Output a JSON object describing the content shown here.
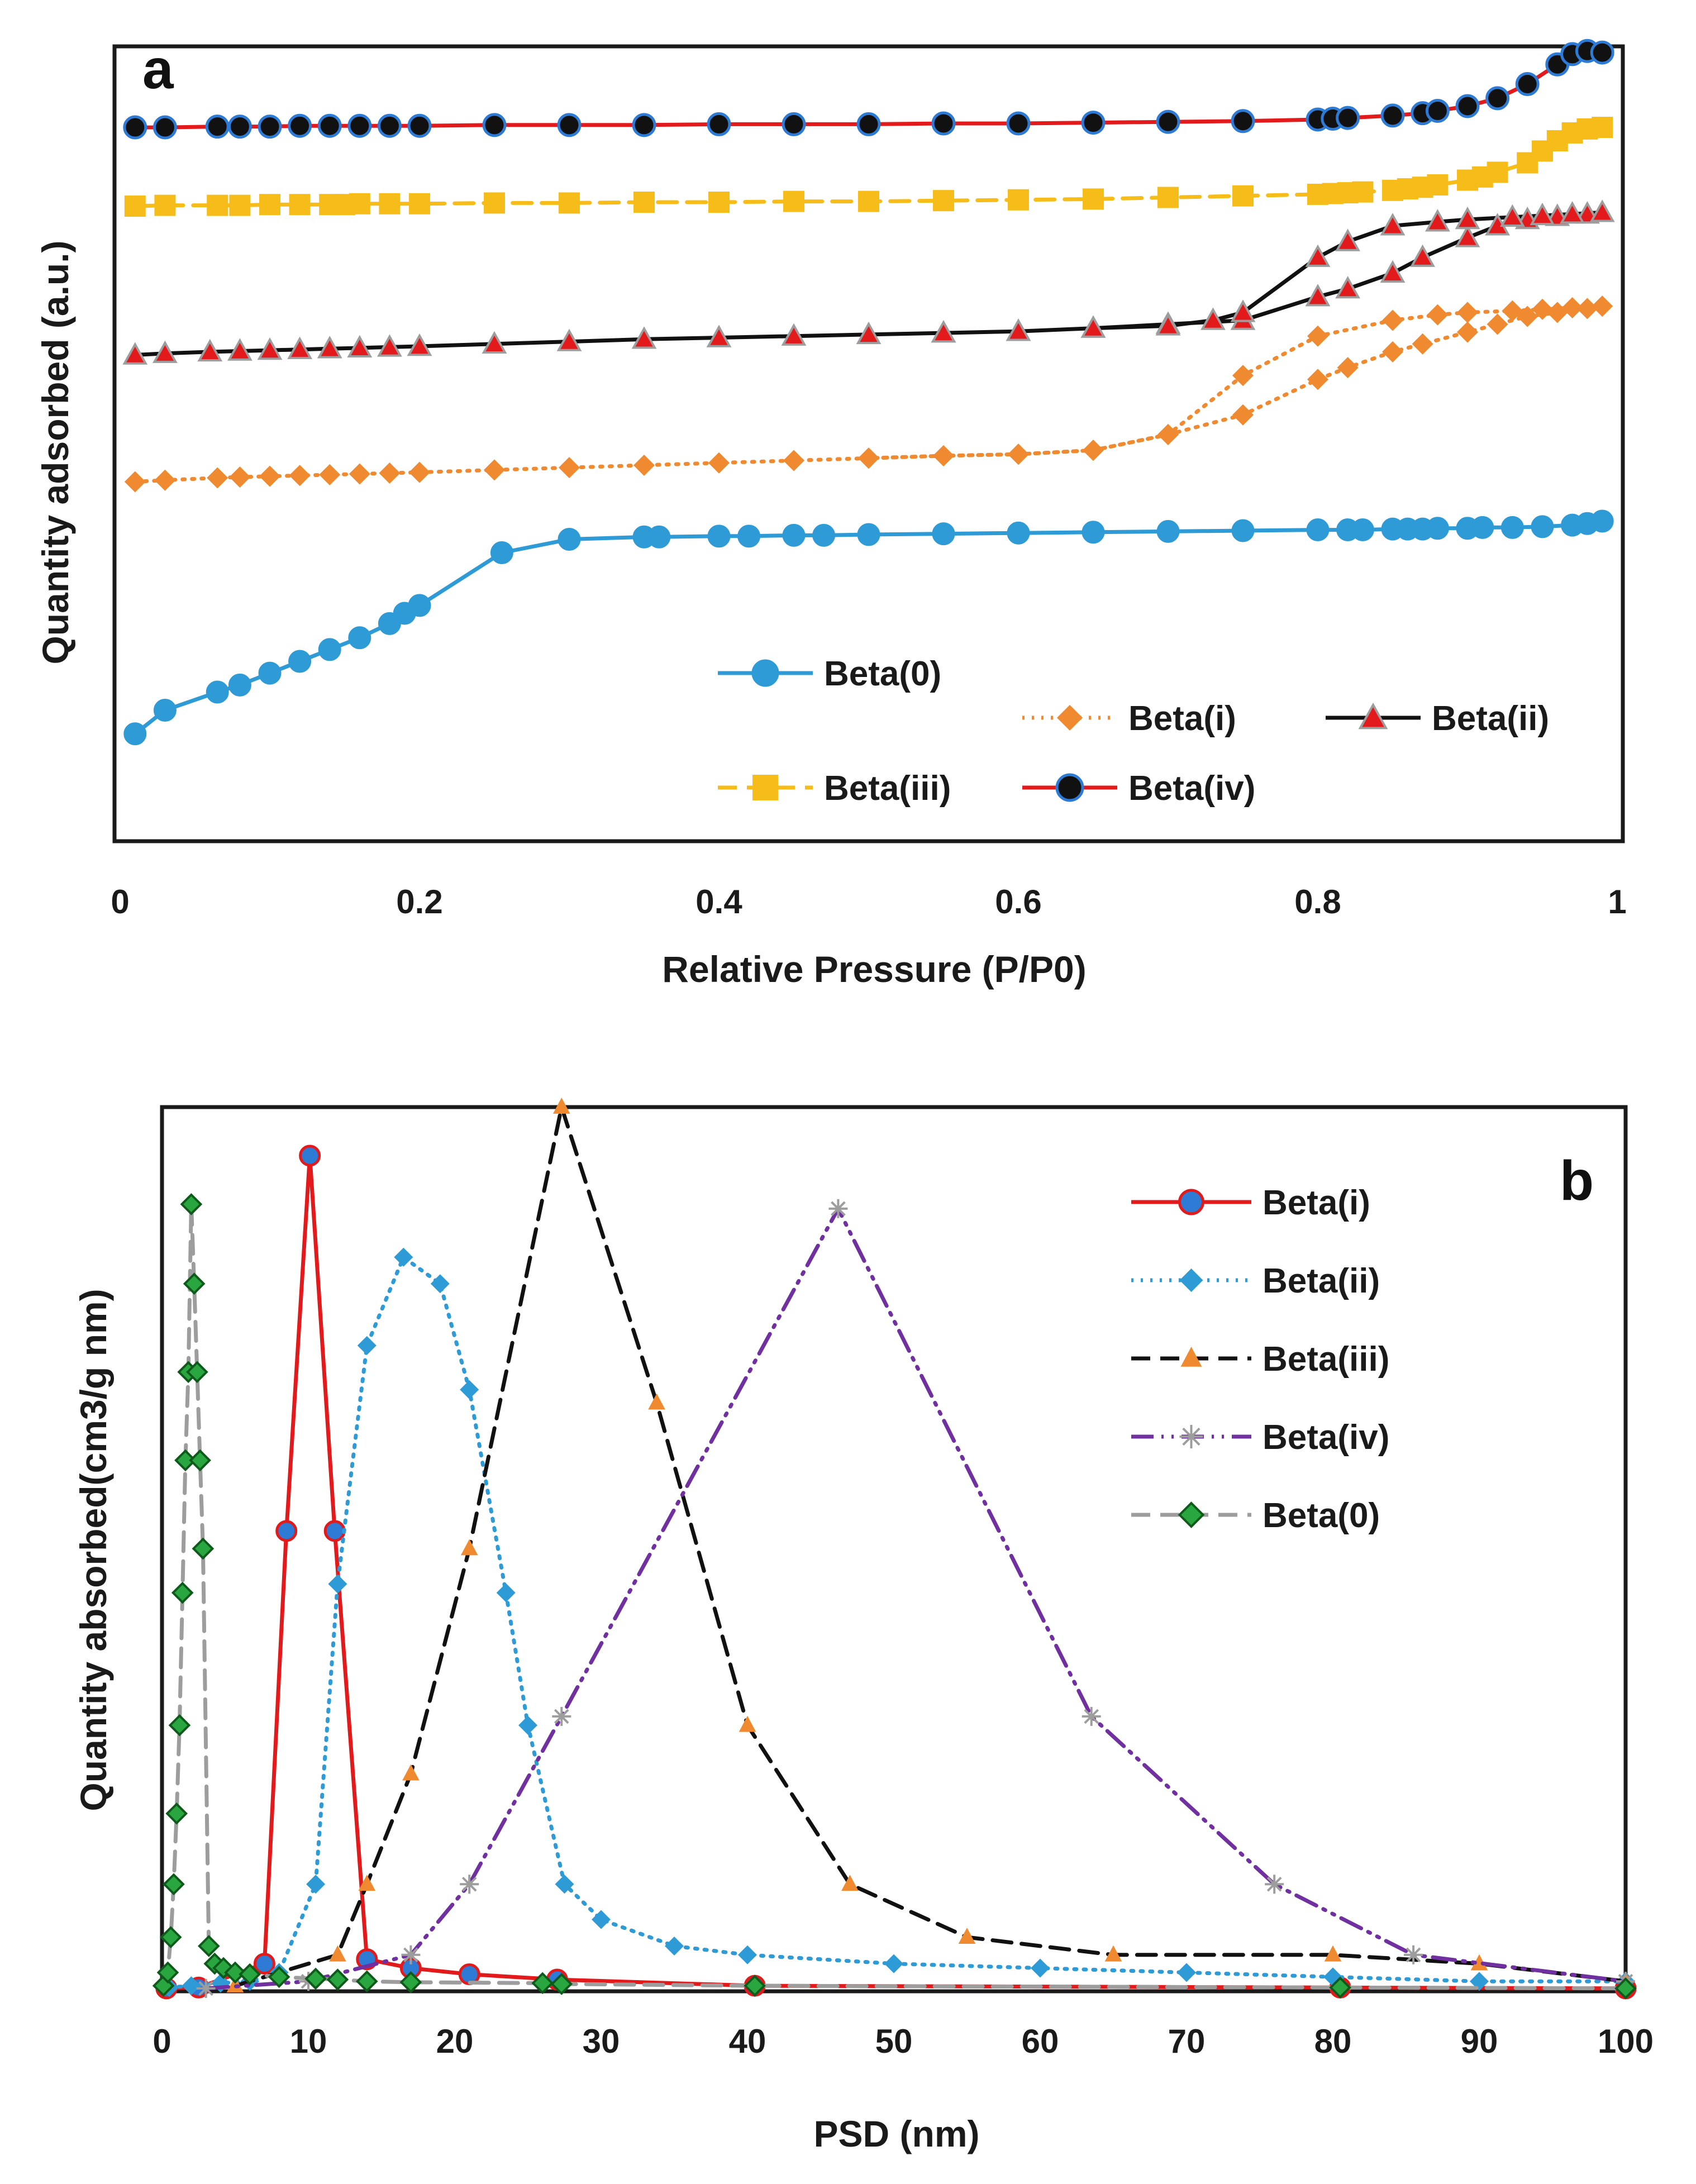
{
  "chart_data": [
    {
      "id": "a",
      "panel_label": "a",
      "type": "line",
      "title": "",
      "xlabel": "Relative Pressure (P/P0)",
      "ylabel": "Quantity adsorbed (a.u.)",
      "xlim": [
        0,
        1
      ],
      "ylim": [
        0,
        10
      ],
      "x_ticks": [
        0,
        0.2,
        0.4,
        0.6,
        0.8,
        1
      ],
      "x_tick_labels": [
        "0",
        "0.2",
        "0.4",
        "0.6",
        "0.8",
        "1"
      ],
      "grid": false,
      "legend_position": "bottom-right",
      "series": [
        {
          "name": "Beta(0)",
          "color": "#2e9bd6",
          "dash": "solid",
          "marker": "circle",
          "x": [
            0.01,
            0.03,
            0.065,
            0.08,
            0.1,
            0.12,
            0.14,
            0.16,
            0.18,
            0.19,
            0.2,
            0.255,
            0.3,
            0.35,
            0.36,
            0.4,
            0.42,
            0.45,
            0.47,
            0.5,
            0.55,
            0.6,
            0.65,
            0.7,
            0.75,
            0.8,
            0.82,
            0.83,
            0.85,
            0.86,
            0.87,
            0.88,
            0.9,
            0.91,
            0.93,
            0.95,
            0.97,
            0.98,
            0.99
          ],
          "y": [
            1.25,
            1.55,
            1.78,
            1.87,
            2.02,
            2.17,
            2.32,
            2.47,
            2.65,
            2.78,
            2.88,
            3.55,
            3.72,
            3.75,
            3.75,
            3.76,
            3.76,
            3.77,
            3.77,
            3.78,
            3.79,
            3.8,
            3.81,
            3.82,
            3.83,
            3.84,
            3.84,
            3.84,
            3.85,
            3.85,
            3.85,
            3.86,
            3.86,
            3.87,
            3.87,
            3.88,
            3.9,
            3.92,
            3.95
          ]
        },
        {
          "name": "Beta(i)",
          "color": "#f08a30",
          "dash": "dotted",
          "marker": "diamond",
          "x": [
            0.01,
            0.03,
            0.065,
            0.08,
            0.1,
            0.12,
            0.14,
            0.16,
            0.18,
            0.2,
            0.25,
            0.3,
            0.35,
            0.4,
            0.45,
            0.5,
            0.55,
            0.6,
            0.65,
            0.7,
            0.75,
            0.8,
            0.82,
            0.85,
            0.87,
            0.9,
            0.92,
            0.94,
            0.96,
            0.98,
            0.99,
            0.97,
            0.95,
            0.93,
            0.9,
            0.88,
            0.85,
            0.8,
            0.75,
            0.7,
            0.65,
            0.6,
            0.55,
            0.5
          ],
          "y": [
            4.45,
            4.47,
            4.5,
            4.51,
            4.52,
            4.53,
            4.54,
            4.55,
            4.56,
            4.57,
            4.6,
            4.63,
            4.66,
            4.69,
            4.72,
            4.75,
            4.78,
            4.8,
            4.85,
            5.05,
            5.3,
            5.75,
            5.9,
            6.1,
            6.2,
            6.35,
            6.45,
            6.55,
            6.6,
            6.65,
            6.68,
            6.66,
            6.64,
            6.62,
            6.6,
            6.57,
            6.5,
            6.3,
            5.8,
            5.05,
            4.85,
            4.8,
            4.78,
            4.75
          ]
        },
        {
          "name": "Beta(ii)",
          "color": "#111111",
          "dash": "solid",
          "marker": "triangle",
          "x": [
            0.01,
            0.03,
            0.06,
            0.08,
            0.1,
            0.12,
            0.14,
            0.16,
            0.18,
            0.2,
            0.25,
            0.3,
            0.35,
            0.4,
            0.45,
            0.5,
            0.55,
            0.6,
            0.65,
            0.7,
            0.75,
            0.8,
            0.82,
            0.85,
            0.87,
            0.9,
            0.92,
            0.94,
            0.96,
            0.98,
            0.99,
            0.97,
            0.95,
            0.93,
            0.9,
            0.88,
            0.85,
            0.82,
            0.8,
            0.75,
            0.73,
            0.7,
            0.65,
            0.6,
            0.55
          ],
          "y": [
            6.06,
            6.08,
            6.1,
            6.11,
            6.12,
            6.13,
            6.14,
            6.15,
            6.16,
            6.17,
            6.2,
            6.23,
            6.26,
            6.28,
            6.3,
            6.32,
            6.34,
            6.36,
            6.4,
            6.45,
            6.5,
            6.8,
            6.9,
            7.1,
            7.3,
            7.55,
            7.7,
            7.78,
            7.82,
            7.85,
            7.87,
            7.85,
            7.83,
            7.81,
            7.78,
            7.75,
            7.7,
            7.5,
            7.3,
            6.6,
            6.5,
            6.43,
            6.4,
            6.36,
            6.34
          ]
        },
        {
          "name": "Beta(iii)",
          "color": "#f6bd1a",
          "dash": "dashed",
          "marker": "square",
          "x": [
            0.01,
            0.03,
            0.065,
            0.08,
            0.1,
            0.12,
            0.14,
            0.15,
            0.16,
            0.18,
            0.2,
            0.25,
            0.3,
            0.35,
            0.4,
            0.45,
            0.5,
            0.55,
            0.6,
            0.65,
            0.7,
            0.75,
            0.8,
            0.81,
            0.82,
            0.83,
            0.85,
            0.86,
            0.87,
            0.88,
            0.9,
            0.91,
            0.92,
            0.94,
            0.95,
            0.96,
            0.97,
            0.98,
            0.99
          ],
          "y": [
            7.95,
            7.96,
            7.96,
            7.96,
            7.97,
            7.97,
            7.97,
            7.97,
            7.98,
            7.98,
            7.98,
            7.99,
            7.99,
            8.0,
            8.0,
            8.01,
            8.01,
            8.02,
            8.03,
            8.04,
            8.06,
            8.08,
            8.1,
            8.11,
            8.12,
            8.13,
            8.15,
            8.17,
            8.19,
            8.22,
            8.28,
            8.32,
            8.38,
            8.5,
            8.65,
            8.78,
            8.88,
            8.93,
            8.95
          ]
        },
        {
          "name": "Beta(iv)",
          "color": "#e31a1c",
          "dash": "solid",
          "marker": "circle-dark",
          "x": [
            0.01,
            0.03,
            0.065,
            0.08,
            0.1,
            0.12,
            0.14,
            0.16,
            0.18,
            0.2,
            0.25,
            0.3,
            0.35,
            0.4,
            0.45,
            0.5,
            0.55,
            0.6,
            0.65,
            0.7,
            0.75,
            0.8,
            0.81,
            0.82,
            0.85,
            0.87,
            0.88,
            0.9,
            0.92,
            0.94,
            0.96,
            0.97,
            0.98,
            0.99
          ],
          "y": [
            8.95,
            8.95,
            8.96,
            8.96,
            8.96,
            8.97,
            8.97,
            8.97,
            8.97,
            8.97,
            8.98,
            8.98,
            8.98,
            8.99,
            8.99,
            8.99,
            9.0,
            9.0,
            9.01,
            9.02,
            9.03,
            9.05,
            9.06,
            9.07,
            9.1,
            9.13,
            9.16,
            9.22,
            9.32,
            9.5,
            9.75,
            9.88,
            9.92,
            9.9
          ]
        }
      ]
    },
    {
      "id": "b",
      "panel_label": "b",
      "type": "line",
      "title": "",
      "xlabel": "PSD (nm)",
      "ylabel": "Quantity absorbed(cm3/g nm)",
      "xlim": [
        0,
        100
      ],
      "ylim": [
        0,
        100
      ],
      "x_ticks": [
        0,
        10,
        20,
        30,
        40,
        50,
        60,
        70,
        80,
        90,
        100
      ],
      "x_tick_labels": [
        "0",
        "10",
        "20",
        "30",
        "40",
        "50",
        "60",
        "70",
        "80",
        "90",
        "100"
      ],
      "grid": false,
      "legend_position": "top-right",
      "series": [
        {
          "name": "Beta(i)",
          "color": "#e31a1c",
          "dash": "solid",
          "marker": "circle",
          "x": [
            0.3,
            2.5,
            7,
            8.5,
            10.1,
            11.8,
            14,
            17,
            21,
            27,
            40.5,
            80.5,
            100
          ],
          "y": [
            0.2,
            0.3,
            3,
            52,
            94.5,
            52,
            3.5,
            2.5,
            1.8,
            1.2,
            0.5,
            0.3,
            0.2
          ]
        },
        {
          "name": "Beta(ii)",
          "color": "#2e9bd6",
          "dash": "dotted",
          "marker": "diamond",
          "x": [
            0.5,
            2,
            4,
            6,
            8,
            10.5,
            12,
            14,
            16.5,
            19,
            21,
            23.5,
            25,
            27.5,
            30,
            35,
            40,
            50,
            60,
            70,
            80,
            90,
            100
          ],
          "y": [
            0.3,
            0.5,
            0.8,
            1,
            2,
            12,
            46,
            73,
            83,
            80,
            68,
            45,
            30,
            12,
            8,
            5,
            4,
            3,
            2.5,
            2,
            1.5,
            1,
            1
          ]
        },
        {
          "name": "Beta(iii)",
          "color": "#111111",
          "dash": "dashed",
          "marker": "triangle-orange",
          "x": [
            5,
            12,
            14,
            17,
            21,
            27.3,
            33.8,
            40,
            47,
            55,
            65,
            80,
            90,
            100
          ],
          "y": [
            0.5,
            4,
            12,
            24.5,
            50,
            100,
            66.5,
            30,
            12,
            6,
            4,
            4,
            3,
            1
          ]
        },
        {
          "name": "Beta(iv)",
          "color": "#7030a0",
          "dash": "dash-dot-dot",
          "marker": "star",
          "x": [
            3,
            10,
            17,
            21,
            27.3,
            46.2,
            63.5,
            76,
            85.5,
            100
          ],
          "y": [
            0.2,
            1,
            4,
            12,
            31,
            88.5,
            31,
            12,
            4,
            1
          ]
        },
        {
          "name": "Beta(0)",
          "color": "#9d9d9d",
          "dash": "dashed",
          "marker": "diamond-green",
          "x": [
            0.1,
            0.4,
            0.6,
            0.8,
            1.0,
            1.2,
            1.4,
            1.6,
            1.8,
            2.0,
            2.2,
            2.4,
            2.6,
            2.8,
            3.2,
            3.6,
            4.2,
            5,
            6,
            8,
            10.5,
            12,
            14,
            17,
            26,
            27.3,
            40.5,
            80.5,
            100
          ],
          "y": [
            0.5,
            2,
            6,
            12,
            20,
            30,
            45,
            60,
            70,
            89,
            80,
            70,
            60,
            50,
            5,
            3,
            2.5,
            2,
            1.8,
            1.5,
            1.3,
            1.2,
            1,
            0.9,
            0.8,
            0.7,
            0.5,
            0.3,
            0.2
          ]
        }
      ]
    }
  ]
}
